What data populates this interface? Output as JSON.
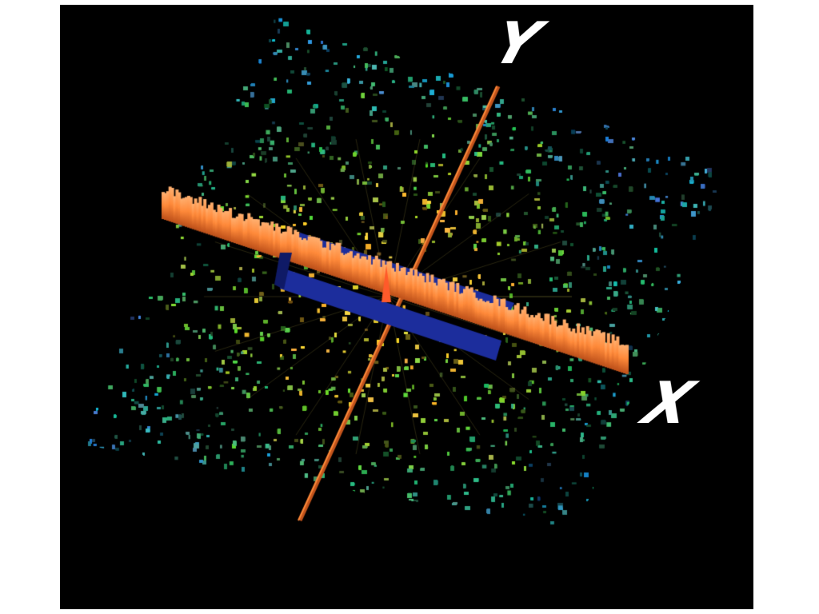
{
  "figure": {
    "description_free": true,
    "axis_labels": {
      "x": "X",
      "y": "Y"
    },
    "colors": {
      "background": "#000000",
      "page": "#ffffff",
      "noise_low": "#2a7f9a",
      "noise_mid": "#2fae4a",
      "noise_high": "#d8c23a",
      "ridge": "#ff8a3a",
      "ridge_dark": "#c2541c",
      "slab": "#1c2d9c",
      "label": "#ffffff"
    }
  }
}
